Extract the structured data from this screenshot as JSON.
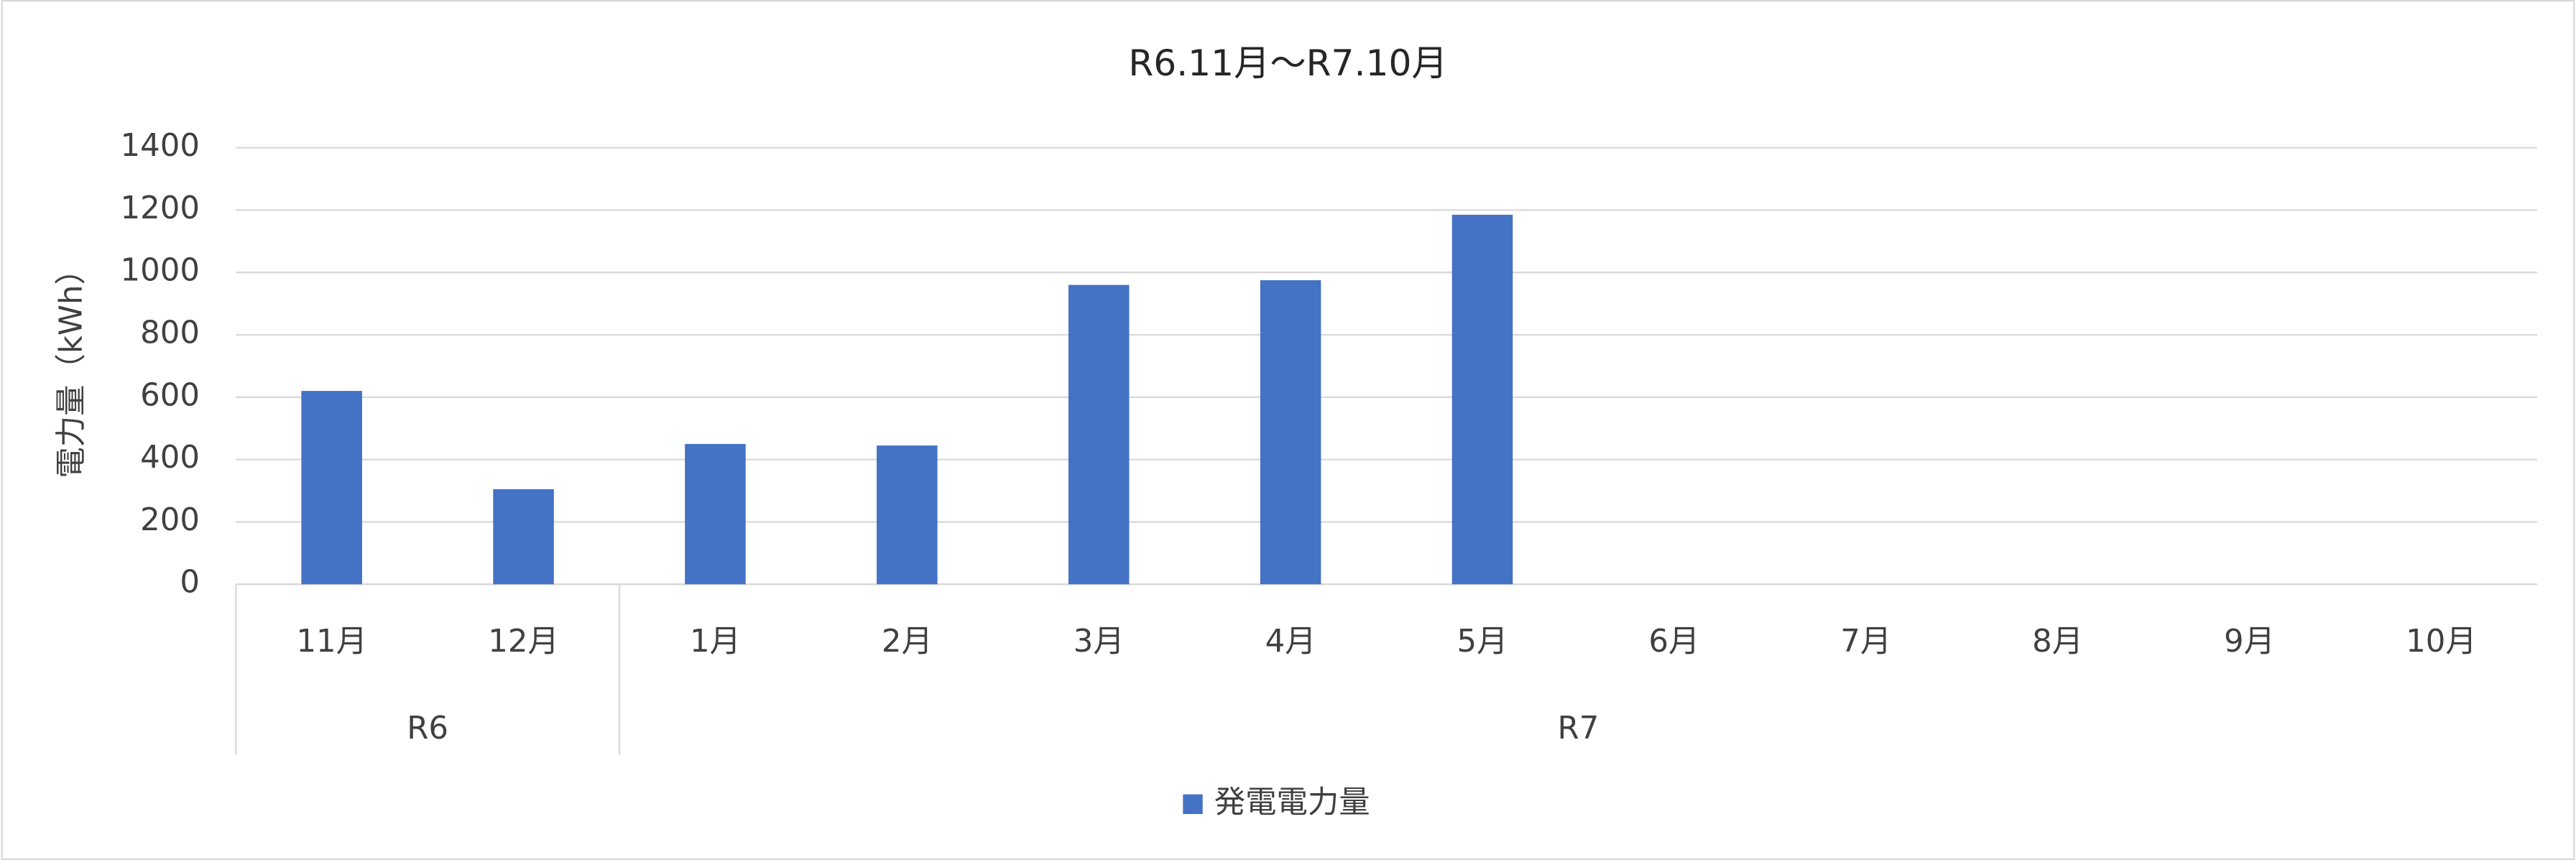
{
  "chart_data": {
    "type": "bar",
    "title": "R6.11月～R7.10月",
    "y_label": "電力量（kWh）",
    "categories": [
      "11月",
      "12月",
      "1月",
      "2月",
      "3月",
      "4月",
      "5月",
      "6月",
      "7月",
      "8月",
      "9月",
      "10月"
    ],
    "category_groups": [
      "R6",
      null,
      "R7",
      null,
      null,
      null,
      null,
      null,
      null,
      null,
      null,
      null
    ],
    "series": [
      {
        "name": "発電電力量",
        "color": "#4472c4",
        "values": [
          620,
          305,
          450,
          445,
          960,
          975,
          1185,
          null,
          null,
          null,
          null,
          null
        ]
      }
    ],
    "ylim": [
      0,
      1400
    ],
    "yticks": [
      0,
      200,
      400,
      600,
      800,
      1000,
      1200,
      1400
    ],
    "grid": true,
    "legend": "bottom"
  }
}
